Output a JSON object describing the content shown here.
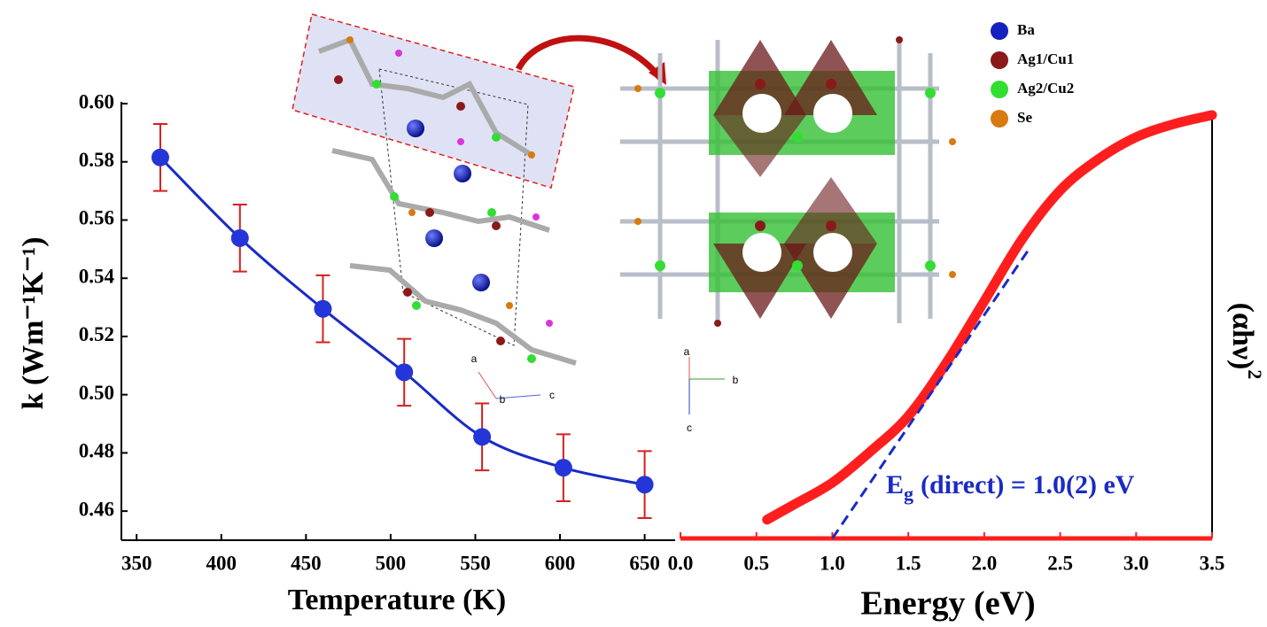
{
  "chart_data": [
    {
      "type": "line",
      "xlabel": "Temperature (K)",
      "ylabel": "k (Wm⁻¹K⁻¹)",
      "x": [
        364,
        411,
        460,
        508,
        554,
        602,
        650
      ],
      "values": [
        0.5815,
        0.5538,
        0.5295,
        0.5077,
        0.4855,
        0.4749,
        0.4691
      ],
      "errors": [
        0.0115,
        0.0115,
        0.0115,
        0.0115,
        0.0115,
        0.0115,
        0.0115
      ],
      "color": "#1a2bc4",
      "marker_color": "#2436d8",
      "error_color": "#d42020",
      "xlim": [
        341,
        668
      ],
      "ylim": [
        0.45,
        0.6
      ],
      "xticks": [
        350,
        400,
        450,
        500,
        550,
        600,
        650
      ],
      "yticks": [
        0.46,
        0.48,
        {
          "value": 0.5,
          "label": "0.50"
        },
        0.52,
        0.54,
        0.56,
        0.58,
        {
          "value": 0.6,
          "label": "0.60"
        }
      ]
    },
    {
      "type": "absorption",
      "xlabel": "Energy (eV)",
      "ylabel": {
        "main": "(αhν)",
        "sup": "2"
      },
      "x": [
        0.57,
        0.75,
        1.0,
        1.25,
        1.5,
        1.75,
        2.0,
        2.25,
        2.5,
        2.75,
        3.0,
        3.25,
        3.5
      ],
      "values": [
        0.044,
        0.08,
        0.131,
        0.204,
        0.287,
        0.412,
        0.557,
        0.703,
        0.817,
        0.89,
        0.942,
        0.973,
        0.994
      ],
      "color": "#ff1e1e",
      "fit": {
        "x": [
          1.0,
          2.3
        ],
        "values": [
          0,
          0.682
        ],
        "color": "#1a2bc4"
      },
      "annotation": {
        "main": "E",
        "sub": "g",
        "rest": "(direct) = 1.0(2) eV"
      },
      "xlim": [
        0,
        3.5
      ],
      "ylim": [
        0,
        1
      ],
      "xticks": [
        {
          "value": 0,
          "label": "0.0"
        },
        0.5,
        {
          "value": 1,
          "label": "1.0"
        },
        1.5,
        {
          "value": 2,
          "label": "2.0"
        },
        2.5,
        {
          "value": 3,
          "label": "3.0"
        },
        3.5
      ]
    }
  ],
  "structure_legend": [
    {
      "label": "Ba",
      "color": "#1520c0"
    },
    {
      "label": "Ag1/Cu1",
      "color": "#8a1a1a"
    },
    {
      "label": "Ag2/Cu2",
      "color": "#33dd33"
    },
    {
      "label": "Se",
      "color": "#d77a10"
    }
  ],
  "crystal_axes": [
    "a",
    "b",
    "c",
    "a",
    "b",
    "c"
  ]
}
